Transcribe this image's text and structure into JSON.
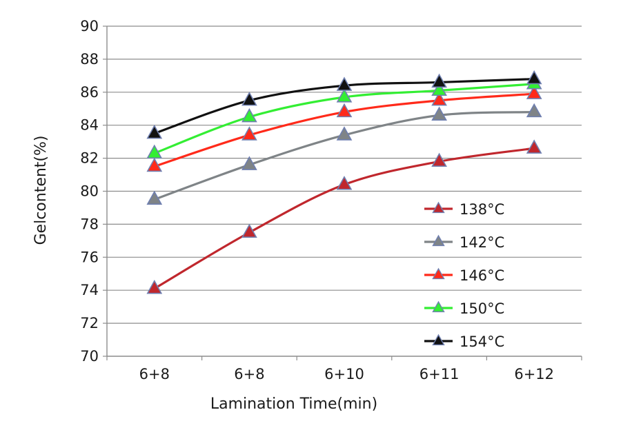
{
  "chart_data": {
    "type": "line",
    "title": "",
    "xlabel": "Lamination Time(min)",
    "ylabel": "Gelcontent(%)",
    "categories": [
      "6+8",
      "6+8",
      "6+10",
      "6+11",
      "6+12"
    ],
    "ylim": [
      70,
      90
    ],
    "yticks": [
      70,
      72,
      74,
      76,
      78,
      80,
      82,
      84,
      86,
      88,
      90
    ],
    "grid": "horizontal",
    "legend_position": "right-inside",
    "marker": "triangle",
    "series": [
      {
        "name": "138°C",
        "color": "#c0272d",
        "values": [
          74.1,
          77.5,
          80.4,
          81.8,
          82.6
        ]
      },
      {
        "name": "142°C",
        "color": "#7f8487",
        "values": [
          79.5,
          81.6,
          83.4,
          84.6,
          84.8
        ]
      },
      {
        "name": "146°C",
        "color": "#ff2a1a",
        "values": [
          81.5,
          83.4,
          84.8,
          85.5,
          85.9
        ]
      },
      {
        "name": "150°C",
        "color": "#33ee33",
        "values": [
          82.3,
          84.5,
          85.7,
          86.1,
          86.5
        ]
      },
      {
        "name": "154°C",
        "color": "#111111",
        "values": [
          83.5,
          85.5,
          86.4,
          86.6,
          86.8
        ]
      }
    ]
  }
}
